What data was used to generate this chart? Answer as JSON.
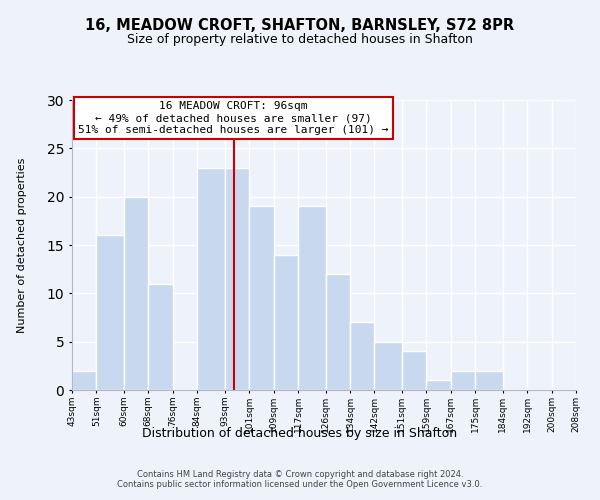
{
  "title": "16, MEADOW CROFT, SHAFTON, BARNSLEY, S72 8PR",
  "subtitle": "Size of property relative to detached houses in Shafton",
  "xlabel": "Distribution of detached houses by size in Shafton",
  "ylabel": "Number of detached properties",
  "bar_edges": [
    43,
    51,
    60,
    68,
    76,
    84,
    93,
    101,
    109,
    117,
    126,
    134,
    142,
    151,
    159,
    167,
    175,
    184,
    192,
    200,
    208
  ],
  "bar_heights": [
    2,
    16,
    20,
    11,
    0,
    23,
    23,
    19,
    14,
    19,
    12,
    7,
    5,
    4,
    1,
    2,
    2,
    0,
    0,
    0
  ],
  "tick_labels": [
    "43sqm",
    "51sqm",
    "60sqm",
    "68sqm",
    "76sqm",
    "84sqm",
    "93sqm",
    "101sqm",
    "109sqm",
    "117sqm",
    "126sqm",
    "134sqm",
    "142sqm",
    "151sqm",
    "159sqm",
    "167sqm",
    "175sqm",
    "184sqm",
    "192sqm",
    "200sqm",
    "208sqm"
  ],
  "bar_color": "#c8d8ee",
  "bar_edge_color": "#ffffff",
  "property_line_x": 96,
  "property_line_color": "#cc0000",
  "annotation_text": "16 MEADOW CROFT: 96sqm\n← 49% of detached houses are smaller (97)\n51% of semi-detached houses are larger (101) →",
  "annotation_box_facecolor": "#ffffff",
  "annotation_box_edgecolor": "#cc0000",
  "ylim": [
    0,
    30
  ],
  "yticks": [
    0,
    5,
    10,
    15,
    20,
    25,
    30
  ],
  "background_color": "#eef2fa",
  "plot_bg_color": "#eef2fa",
  "title_fontsize": 10.5,
  "subtitle_fontsize": 9,
  "footer_line1": "Contains HM Land Registry data © Crown copyright and database right 2024.",
  "footer_line2": "Contains public sector information licensed under the Open Government Licence v3.0."
}
